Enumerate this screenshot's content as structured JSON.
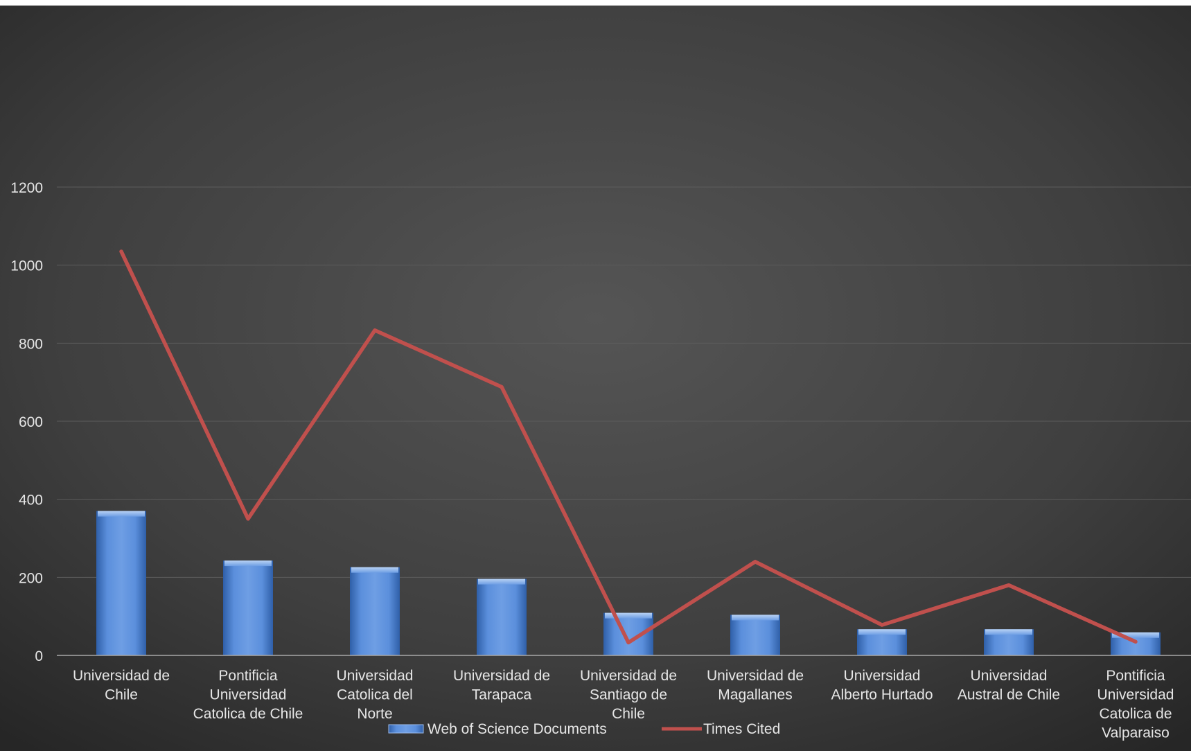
{
  "chart_data": {
    "type": "bar",
    "categories": [
      "Universidad de Chile",
      "Pontificia Universidad Catolica de Chile",
      "Universidad Catolica del Norte",
      "Universidad de Tarapaca",
      "Universidad de Santiago de Chile",
      "Universidad de Magallanes",
      "Universidad Alberto Hurtado",
      "Universidad Austral de Chile",
      "Pontificia Universidad Catolica de Valparaiso"
    ],
    "category_lines": [
      [
        "Universidad de",
        "Chile"
      ],
      [
        "Pontificia",
        "Universidad",
        "Catolica de Chile"
      ],
      [
        "Universidad",
        "Catolica del",
        "Norte"
      ],
      [
        "Universidad de",
        "Tarapaca"
      ],
      [
        "Universidad de",
        "Santiago de",
        "Chile"
      ],
      [
        "Universidad de",
        "Magallanes"
      ],
      [
        "Universidad",
        "Alberto Hurtado"
      ],
      [
        "Universidad",
        "Austral de Chile"
      ],
      [
        "Pontificia",
        "Universidad",
        "Catolica de",
        "Valparaiso"
      ]
    ],
    "series": [
      {
        "name": "Web of Science Documents",
        "kind": "bar",
        "color": "#4a7fd4",
        "values": [
          370,
          243,
          226,
          196,
          109,
          104,
          67,
          67,
          59
        ]
      },
      {
        "name": "Times Cited",
        "kind": "line",
        "color": "#c0504d",
        "values": [
          1035,
          350,
          833,
          688,
          33,
          240,
          78,
          180,
          35
        ]
      }
    ],
    "yticks": [
      "0",
      "200",
      "400",
      "600",
      "800",
      "1000",
      "1200"
    ],
    "ylim": [
      0,
      1200
    ],
    "title": "",
    "xlabel": "",
    "ylabel": "",
    "grid": true,
    "legend": "bottom",
    "background": "#3e3e3e",
    "text_color": "#e6e6e6",
    "gridline_color": "#5a5a5a"
  }
}
